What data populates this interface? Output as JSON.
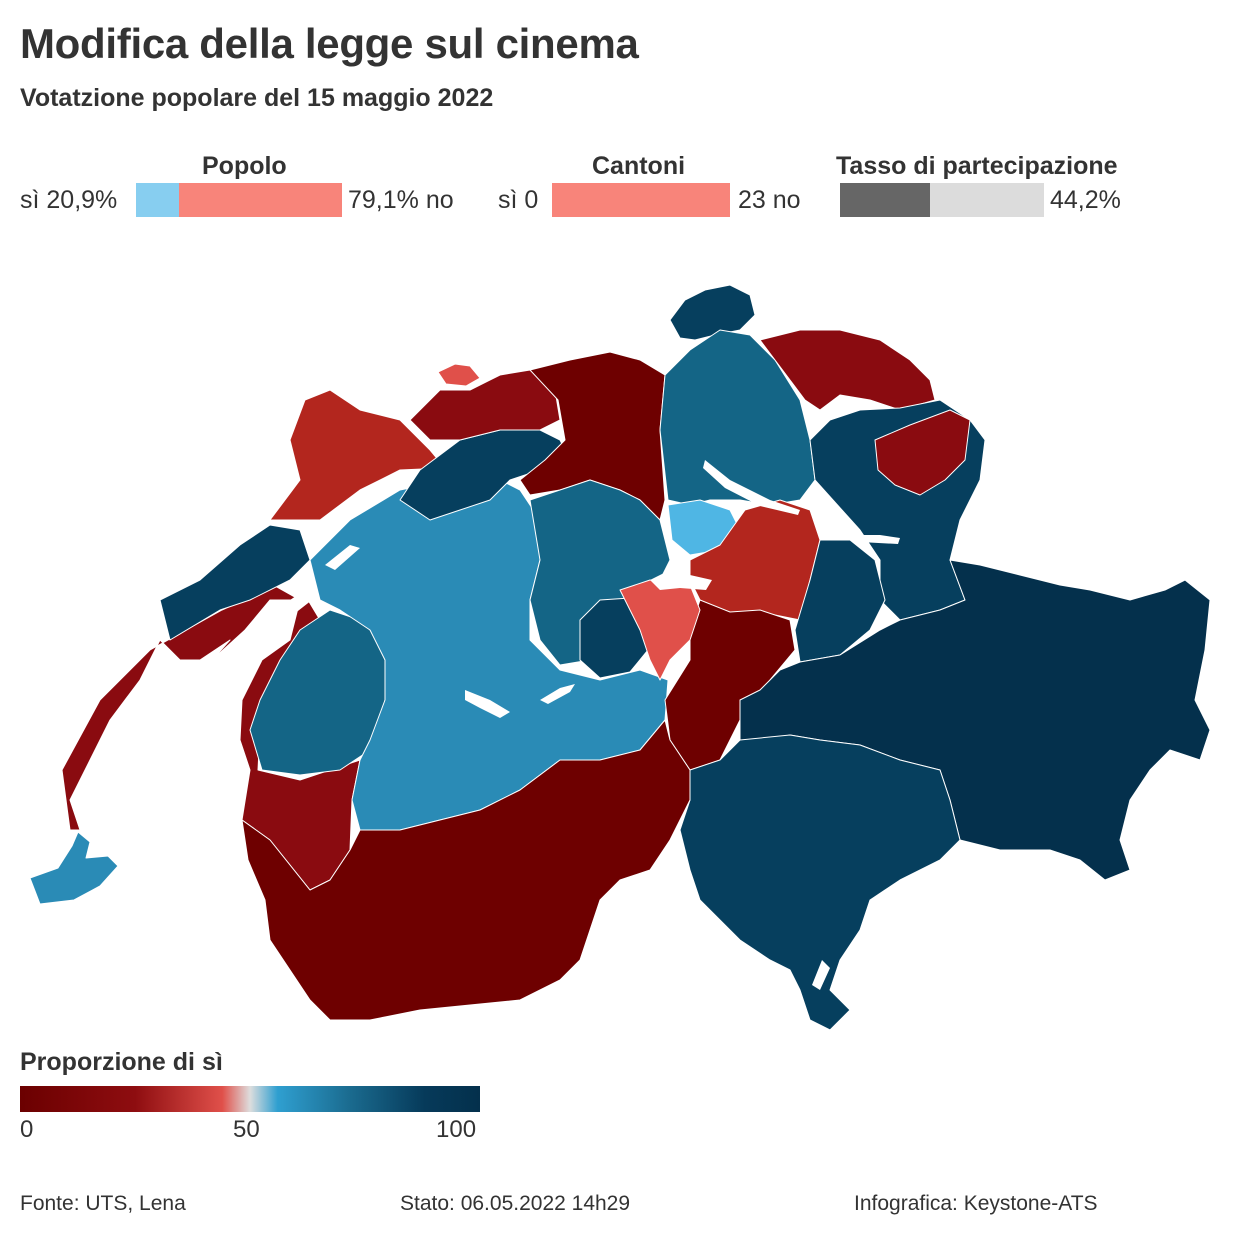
{
  "title": "Modifica della legge sul cinema",
  "subtitle": "Votatzione popolare del 15 maggio 2022",
  "popolo": {
    "title": "Popolo",
    "yes_label": "sì 20,9%",
    "no_label": "79,1% no",
    "yes_fraction": 0.209,
    "yes_color": "#87cef0",
    "no_color": "#f8847a"
  },
  "cantoni": {
    "title": "Cantoni",
    "yes_label": "sì 0",
    "no_label": "23 no",
    "yes_count": 0,
    "no_count": 23,
    "no_color": "#f8847a"
  },
  "partecipazione": {
    "title": "Tasso di partecipazione",
    "value_label": "44,2%",
    "fraction": 0.442,
    "fill_color": "#666666",
    "rest_color": "#dcdcdc"
  },
  "legend": {
    "title": "Proporzione di sì",
    "ticks": [
      "0",
      "50",
      "100"
    ]
  },
  "map_colors": {
    "dark_red": "#6e0000",
    "red": "#8a0b10",
    "mid_red": "#b3261e",
    "light_red": "#e0504a",
    "light_blue": "#4fb6e4",
    "blue": "#2a8bb6",
    "mid_blue": "#146586",
    "dark_blue": "#063f5e",
    "darkest_blue": "#04304c"
  },
  "footer": {
    "source": "Fonte: UTS, Lena",
    "status": "Stato: 06.05.2022 14h29",
    "credit": "Infografica: Keystone-ATS"
  }
}
